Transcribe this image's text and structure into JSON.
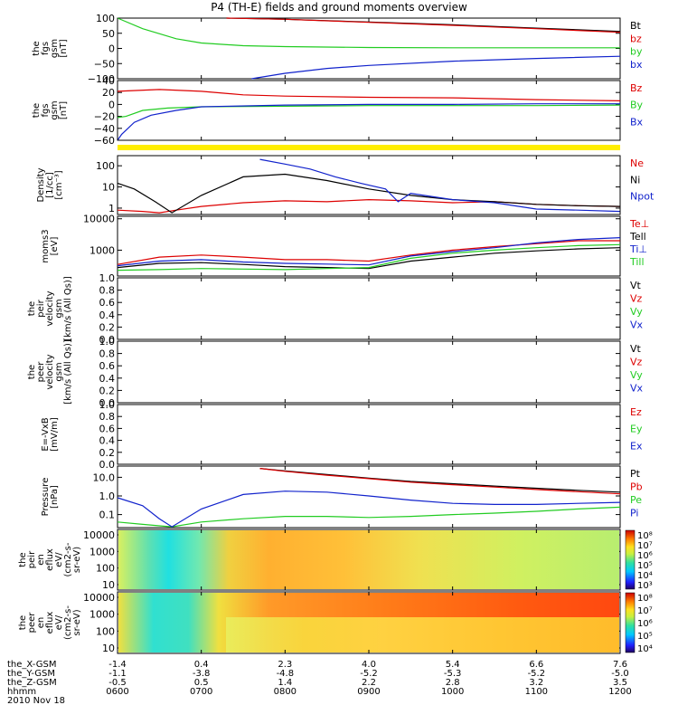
{
  "title": "P4 (TH-E) fields and ground moments overview",
  "colors": {
    "black": "#000000",
    "red": "#dd0000",
    "green": "#22cc22",
    "blue": "#1122cc",
    "yellow": "#ffee00"
  },
  "chart_data": [
    {
      "type": "line",
      "ylabel": [
        "the",
        "fgs",
        "gsm",
        "[nT]"
      ],
      "ylim": [
        -100,
        100
      ],
      "yticks": [
        "100",
        "50",
        "0",
        "−50",
        "−100"
      ],
      "series": [
        {
          "name": "Bt",
          "color": "#000000",
          "x": [
            7.3,
            8,
            9,
            10,
            11,
            12
          ],
          "y": [
            100,
            96,
            87,
            78,
            67,
            56
          ]
        },
        {
          "name": "bz",
          "color": "#dd0000",
          "x": [
            7.3,
            8,
            9,
            10,
            11,
            12
          ],
          "y": [
            100,
            96,
            86,
            76,
            65,
            53
          ]
        },
        {
          "name": "by",
          "color": "#22cc22",
          "x": [
            6.0,
            6.3,
            6.7,
            7.0,
            7.5,
            8,
            9,
            10,
            11,
            12
          ],
          "y": [
            100,
            65,
            32,
            18,
            9,
            6,
            3,
            2,
            2,
            2
          ]
        },
        {
          "name": "bx",
          "color": "#1122cc",
          "x": [
            7.6,
            8,
            8.5,
            9,
            10,
            11,
            12
          ],
          "y": [
            -100,
            -82,
            -66,
            -56,
            -42,
            -33,
            -26
          ]
        }
      ]
    },
    {
      "type": "line",
      "ylabel": [
        "the",
        "fgs",
        "gsm",
        "[nT]"
      ],
      "ylim": [
        -60,
        40
      ],
      "yticks": [
        "40",
        "20",
        "0",
        "−20",
        "−40",
        "−60"
      ],
      "series": [
        {
          "name": "Bz",
          "color": "#dd0000",
          "x": [
            6,
            6.5,
            7,
            7.5,
            8,
            9,
            10,
            11,
            12
          ],
          "y": [
            22,
            25,
            22,
            16,
            14,
            12,
            11,
            8,
            6
          ]
        },
        {
          "name": "By",
          "color": "#22cc22",
          "x": [
            6,
            6.1,
            6.3,
            6.6,
            7,
            8,
            9,
            10,
            11,
            12
          ],
          "y": [
            -22,
            -20,
            -10,
            -6,
            -4,
            -3,
            -2,
            -2,
            -2,
            -1
          ]
        },
        {
          "name": "Bx",
          "color": "#1122cc",
          "x": [
            6,
            6.05,
            6.2,
            6.4,
            6.7,
            7,
            8,
            9,
            10,
            11,
            12
          ],
          "y": [
            -62,
            -50,
            -30,
            -18,
            -10,
            -4,
            -1,
            0,
            0,
            1,
            1
          ]
        }
      ]
    },
    {
      "type": "line",
      "ylabel": [
        "Density",
        "[1/cc]",
        "[cm⁻³]"
      ],
      "ylim": [
        0.5,
        300
      ],
      "log": true,
      "yticks": [
        "100",
        "10",
        "1"
      ],
      "yticks_values": [
        100,
        10,
        1
      ],
      "series": [
        {
          "name": "Ne",
          "color": "#dd0000",
          "x": [
            6,
            6.3,
            6.5,
            6.7,
            7,
            7.5,
            8,
            8.5,
            9,
            9.5,
            10,
            10.5,
            11,
            11.5,
            12
          ],
          "y": [
            0.8,
            0.7,
            0.6,
            0.8,
            1.2,
            1.8,
            2.2,
            2.0,
            2.5,
            2.2,
            1.8,
            2.0,
            1.5,
            1.3,
            1.2
          ]
        },
        {
          "name": "Ni",
          "color": "#000000",
          "x": [
            6,
            6.2,
            6.45,
            6.65,
            7,
            7.5,
            8,
            8.5,
            9,
            9.5,
            10,
            10.5,
            11,
            11.5,
            12
          ],
          "y": [
            15,
            8,
            2,
            0.6,
            4,
            30,
            40,
            20,
            8,
            4,
            2.5,
            2,
            1.5,
            1.3,
            1.2
          ]
        },
        {
          "name": "Npot",
          "color": "#1122cc",
          "x": [
            7.7,
            8,
            8.3,
            8.6,
            8.9,
            9.2,
            9.35,
            9.5,
            10,
            10.5,
            11,
            11.5,
            12
          ],
          "y": [
            200,
            120,
            70,
            30,
            15,
            8,
            2,
            5,
            2.5,
            1.8,
            0.9,
            0.8,
            0.7
          ]
        }
      ]
    },
    {
      "type": "line",
      "ylabel": [
        "moms3",
        "[eV]"
      ],
      "ylim": [
        150,
        12000
      ],
      "log": true,
      "yticks": [
        "10000",
        "1000"
      ],
      "yticks_values": [
        10000,
        1000
      ],
      "series": [
        {
          "name": "Te⊥",
          "color": "#dd0000",
          "x": [
            6,
            6.5,
            7,
            7.5,
            8,
            8.5,
            9,
            9.5,
            10,
            10.5,
            11,
            11.5,
            12
          ],
          "y": [
            350,
            600,
            700,
            600,
            500,
            500,
            450,
            700,
            1000,
            1300,
            1600,
            2000,
            2000
          ]
        },
        {
          "name": "Tell",
          "color": "#000000",
          "x": [
            6,
            6.5,
            7,
            7.5,
            8,
            8.5,
            9,
            9.5,
            10,
            10.5,
            11,
            11.5,
            12
          ],
          "y": [
            280,
            380,
            400,
            350,
            300,
            280,
            260,
            450,
            600,
            800,
            950,
            1100,
            1200
          ]
        },
        {
          "name": "Ti⊥",
          "color": "#1122cc",
          "x": [
            6,
            6.5,
            7,
            7.5,
            8,
            8.5,
            9,
            9.5,
            10,
            10.5,
            11,
            11.5,
            12
          ],
          "y": [
            320,
            450,
            500,
            420,
            380,
            360,
            340,
            650,
            900,
            1200,
            1700,
            2200,
            2500
          ]
        },
        {
          "name": "Till",
          "color": "#22cc22",
          "x": [
            6,
            6.5,
            7,
            7.5,
            8,
            8.5,
            9,
            9.5,
            10,
            10.5,
            11,
            11.5,
            12
          ],
          "y": [
            230,
            240,
            260,
            250,
            240,
            260,
            280,
            550,
            800,
            1000,
            1200,
            1400,
            1500
          ]
        }
      ]
    },
    {
      "type": "line",
      "ylabel": [
        "the",
        "peir",
        "velocity",
        "gsm",
        "[km/s (All Qs)]"
      ],
      "ylim": [
        0,
        1
      ],
      "yticks": [
        "1.0",
        "0.8",
        "0.6",
        "0.4",
        "0.2",
        "0.0"
      ],
      "series": [
        {
          "name": "Vt",
          "color": "#000000"
        },
        {
          "name": "Vz",
          "color": "#dd0000"
        },
        {
          "name": "Vy",
          "color": "#22cc22"
        },
        {
          "name": "Vx",
          "color": "#1122cc"
        }
      ]
    },
    {
      "type": "line",
      "ylabel": [
        "the",
        "peer",
        "velocity",
        "gsm",
        "[km/s (All Qs)]"
      ],
      "ylim": [
        0,
        1
      ],
      "yticks": [
        "1.0",
        "0.8",
        "0.6",
        "0.4",
        "0.2",
        "0.0"
      ],
      "series": [
        {
          "name": "Vt",
          "color": "#000000"
        },
        {
          "name": "Vz",
          "color": "#dd0000"
        },
        {
          "name": "Vy",
          "color": "#22cc22"
        },
        {
          "name": "Vx",
          "color": "#1122cc"
        }
      ]
    },
    {
      "type": "line",
      "ylabel": [
        "E=-VxB",
        "[mV/m]"
      ],
      "ylim": [
        0,
        1
      ],
      "yticks": [
        "1.0",
        "0.8",
        "0.6",
        "0.4",
        "0.2",
        "0.0"
      ],
      "series": [
        {
          "name": "Ez",
          "color": "#dd0000"
        },
        {
          "name": "Ey",
          "color": "#22cc22"
        },
        {
          "name": "Ex",
          "color": "#1122cc"
        }
      ]
    },
    {
      "type": "line",
      "ylabel": [
        "Pressure",
        "[nPa]"
      ],
      "ylim": [
        0.02,
        40
      ],
      "log": true,
      "yticks": [
        "10.0",
        "1.0",
        "0.1"
      ],
      "yticks_values": [
        10,
        1,
        0.1
      ],
      "series": [
        {
          "name": "Pt",
          "color": "#000000",
          "x": [
            7.7,
            8,
            8.5,
            9,
            9.5,
            10,
            10.5,
            11,
            11.5,
            12
          ],
          "y": [
            30,
            22,
            14,
            9,
            6,
            4.5,
            3.4,
            2.6,
            2.0,
            1.6
          ]
        },
        {
          "name": "Pb",
          "color": "#dd0000",
          "x": [
            7.7,
            8,
            8.5,
            9,
            9.5,
            10,
            10.5,
            11,
            11.5,
            12
          ],
          "y": [
            30,
            21,
            13,
            8.5,
            5.5,
            4.0,
            3.0,
            2.2,
            1.7,
            1.3
          ]
        },
        {
          "name": "Pe",
          "color": "#22cc22",
          "x": [
            6,
            6.3,
            6.5,
            6.65,
            7,
            7.5,
            8,
            8.5,
            9,
            9.5,
            10,
            10.5,
            11,
            11.5,
            12
          ],
          "y": [
            0.04,
            0.03,
            0.025,
            0.022,
            0.04,
            0.06,
            0.08,
            0.08,
            0.07,
            0.08,
            0.1,
            0.12,
            0.15,
            0.2,
            0.25
          ]
        },
        {
          "name": "Pi",
          "color": "#1122cc",
          "x": [
            6,
            6.3,
            6.5,
            6.65,
            7,
            7.5,
            8,
            8.5,
            9,
            9.5,
            10,
            10.5,
            11,
            11.5,
            12
          ],
          "y": [
            0.8,
            0.3,
            0.06,
            0.022,
            0.2,
            1.2,
            1.8,
            1.6,
            1.0,
            0.6,
            0.4,
            0.35,
            0.35,
            0.4,
            0.45
          ]
        }
      ]
    },
    {
      "type": "heatmap",
      "ylabel": [
        "the",
        "peir",
        "en",
        "eflux",
        "eV/",
        "(cm2-s-",
        "sr-eV)"
      ],
      "yticks": [
        "10000",
        "1000",
        "100",
        "10"
      ],
      "colorbar": [
        "10⁸",
        "10⁷",
        "10⁶",
        "10⁵",
        "10⁴",
        "10³"
      ]
    },
    {
      "type": "heatmap",
      "ylabel": [
        "the",
        "peer",
        "en",
        "eflux",
        "eV/",
        "(cm2-s-",
        "sr-eV)"
      ],
      "yticks": [
        "10000",
        "1000",
        "100",
        "10"
      ],
      "colorbar": [
        "10⁸",
        "10⁷",
        "10⁶",
        "10⁵",
        "10⁴"
      ]
    }
  ],
  "x_axis": {
    "rows": [
      {
        "label": "the_X-GSM",
        "values": [
          "-1.4",
          "0.4",
          "2.3",
          "4.0",
          "5.4",
          "6.6",
          "7.6"
        ]
      },
      {
        "label": "the_Y-GSM",
        "values": [
          "-1.1",
          "-3.8",
          "-4.8",
          "-5.2",
          "-5.3",
          "-5.2",
          "-5.0"
        ]
      },
      {
        "label": "the_Z-GSM",
        "values": [
          "-0.5",
          "0.5",
          "1.4",
          "2.2",
          "2.8",
          "3.2",
          "3.5"
        ]
      },
      {
        "label": "hhmm",
        "values": [
          "0600",
          "0700",
          "0800",
          "0900",
          "1000",
          "1100",
          "1200"
        ]
      }
    ],
    "date": "2010 Nov 18"
  }
}
